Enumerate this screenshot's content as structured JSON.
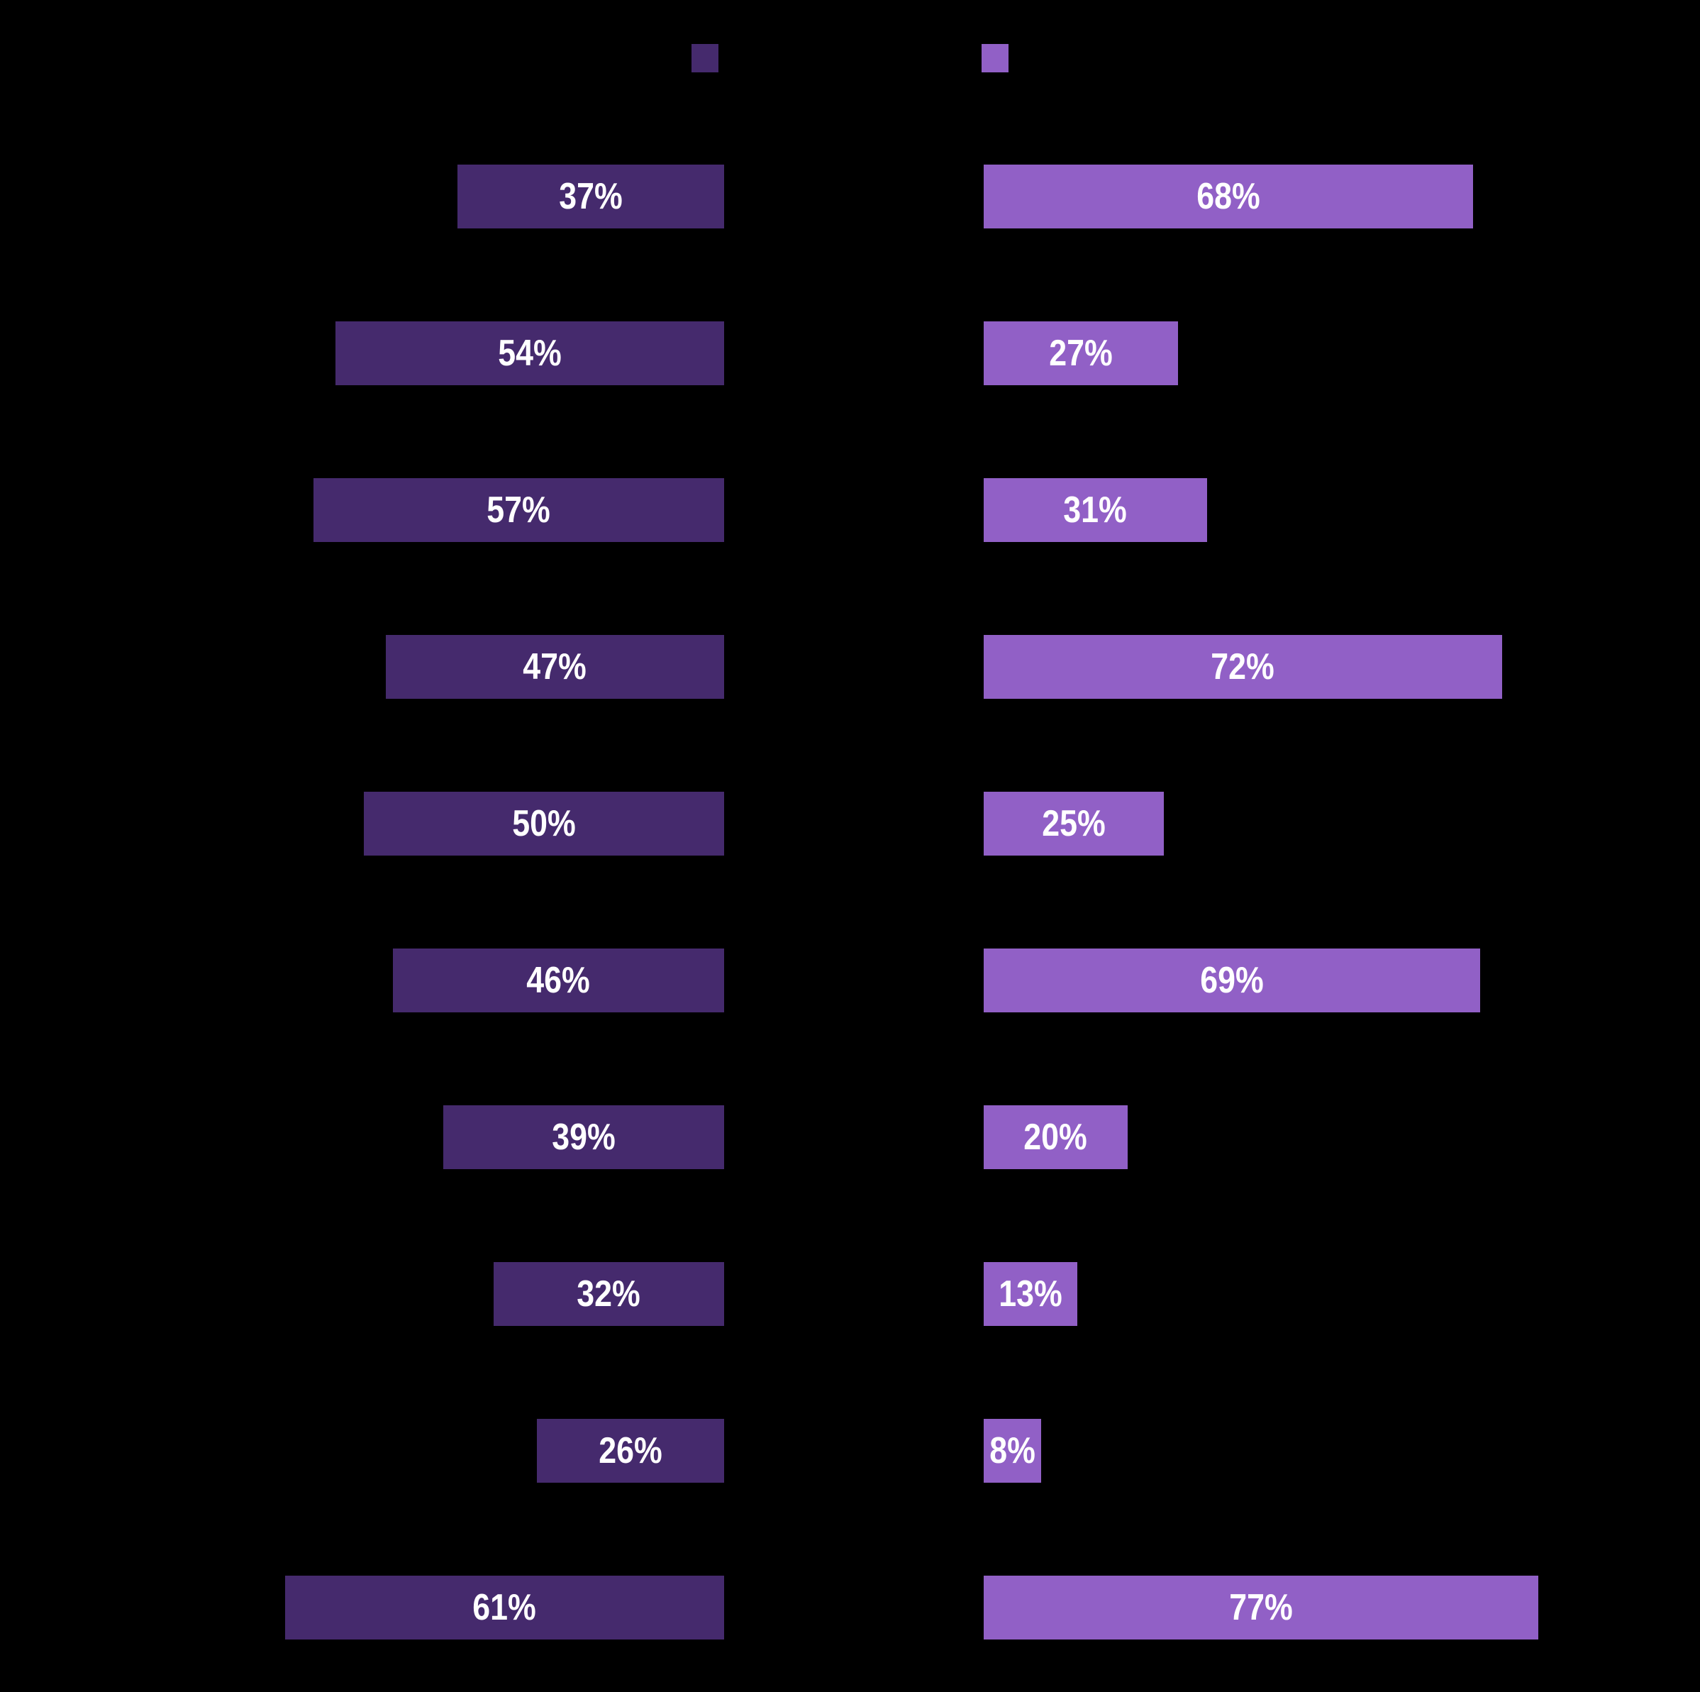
{
  "chart_data": {
    "type": "bar",
    "orientation": "horizontal",
    "title": "",
    "background_color": "#000000",
    "label_text_color": "#ffffff",
    "value_suffix": "%",
    "rows": 10,
    "series": [
      {
        "key": "dark-purple",
        "color": "#452a6d",
        "alignment": "right-aligned-column-left",
        "values": [
          37,
          54,
          57,
          47,
          50,
          46,
          39,
          32,
          26,
          61
        ]
      },
      {
        "key": "light-purple",
        "color": "#9160c6",
        "alignment": "left-aligned-column-right",
        "values": [
          68,
          27,
          31,
          72,
          25,
          69,
          20,
          13,
          8,
          77
        ]
      }
    ],
    "legend": {
      "swatches": [
        {
          "key": "dark-purple",
          "color": "#452a6d"
        },
        {
          "key": "light-purple",
          "color": "#9160c6"
        }
      ]
    }
  }
}
